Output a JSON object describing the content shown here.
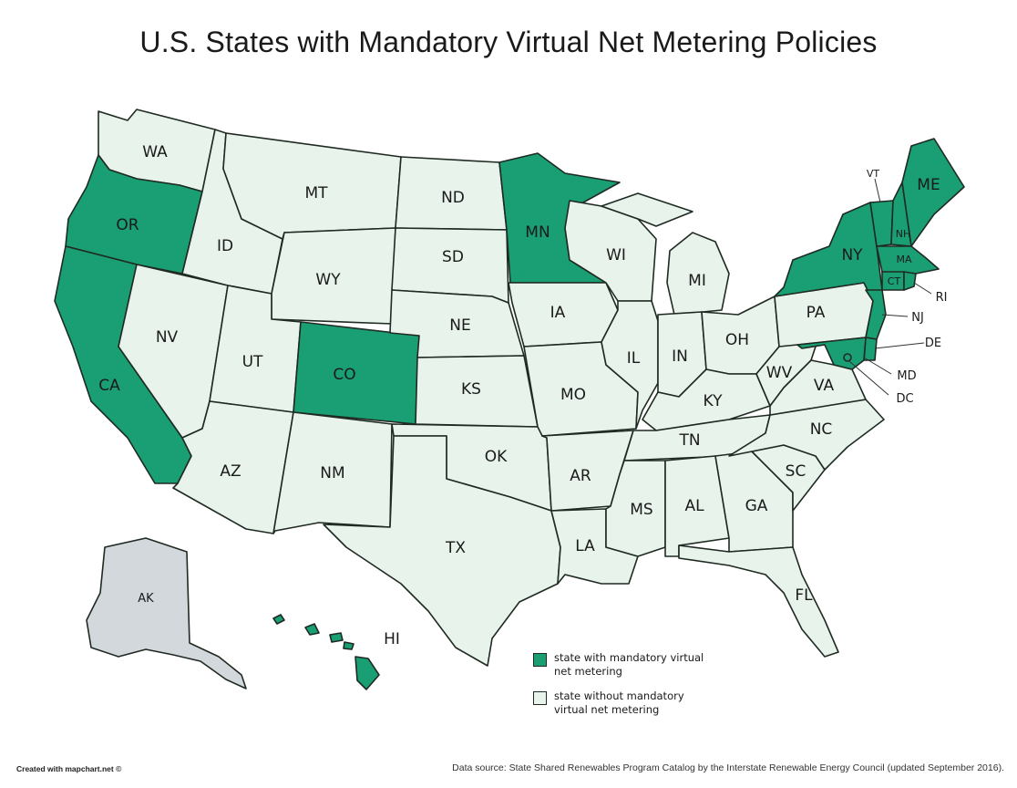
{
  "title": "U.S. States with Mandatory Virtual Net Metering Policies",
  "colors": {
    "with_policy": "#1a9e74",
    "without_policy": "#e8f3ec",
    "alaska": "#d3d8dc",
    "border": "#1f2a22"
  },
  "states_with_policy": [
    "OR",
    "CA",
    "CO",
    "MN",
    "NY",
    "VT",
    "NH",
    "ME",
    "MA",
    "CT",
    "RI",
    "DE",
    "MD",
    "DC",
    "HI",
    "NJ"
  ],
  "labels": {
    "WA": "WA",
    "OR": "OR",
    "CA": "CA",
    "NV": "NV",
    "ID": "ID",
    "MT": "MT",
    "WY": "WY",
    "UT": "UT",
    "AZ": "AZ",
    "CO": "CO",
    "NM": "NM",
    "ND": "ND",
    "SD": "SD",
    "NE": "NE",
    "KS": "KS",
    "OK": "OK",
    "TX": "TX",
    "MN": "MN",
    "IA": "IA",
    "MO": "MO",
    "AR": "AR",
    "LA": "LA",
    "WI": "WI",
    "IL": "IL",
    "MI": "MI",
    "IN": "IN",
    "OH": "OH",
    "KY": "KY",
    "TN": "TN",
    "MS": "MS",
    "AL": "AL",
    "GA": "GA",
    "FL": "FL",
    "SC": "SC",
    "NC": "NC",
    "VA": "VA",
    "WV": "WV",
    "PA": "PA",
    "NY": "NY",
    "VT": "VT",
    "NH": "NH",
    "ME": "ME",
    "MA": "MA",
    "CT": "CT",
    "RI": "RI",
    "NJ": "NJ",
    "DE": "DE",
    "MD": "MD",
    "DC": "DC",
    "AK": "AK",
    "HI": "HI"
  },
  "legend": [
    {
      "label": "state with mandatory virtual net metering",
      "color": "#1a9e74"
    },
    {
      "label": "state without mandatory virtual net metering",
      "color": "#e8f3ec"
    }
  ],
  "credit": "Created with mapchart.net ©",
  "source": "Data source: State Shared Renewables Program Catalog by the Interstate Renewable Energy Council (updated September 2016)."
}
